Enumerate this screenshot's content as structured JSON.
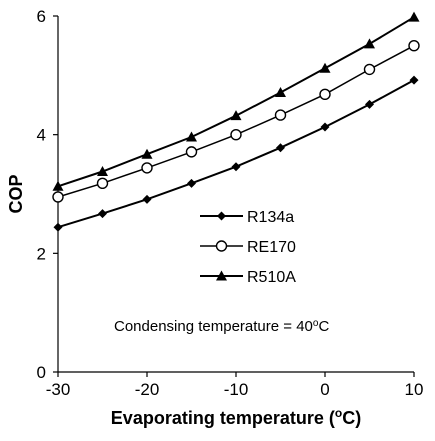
{
  "chart_data": {
    "type": "line",
    "xlabel_main": "Evaporating temperature (",
    "xlabel_sup": "o",
    "xlabel_tail": "C)",
    "ylabel": "COP",
    "xlim": [
      -30,
      10
    ],
    "ylim": [
      0,
      6
    ],
    "x_ticks": [
      "-30",
      "-20",
      "-10",
      "0",
      "10"
    ],
    "y_ticks": [
      "0",
      "2",
      "4",
      "6"
    ],
    "x": [
      -30,
      -25,
      -20,
      -15,
      -10,
      -5,
      0,
      5,
      10
    ],
    "series": [
      {
        "name": "R134a",
        "marker": "diamond",
        "values": [
          2.44,
          2.67,
          2.91,
          3.18,
          3.46,
          3.78,
          4.13,
          4.51,
          4.92
        ]
      },
      {
        "name": "RE170",
        "marker": "open-circle",
        "values": [
          2.95,
          3.18,
          3.44,
          3.71,
          4.0,
          4.33,
          4.68,
          5.1,
          5.5
        ]
      },
      {
        "name": "R510A",
        "marker": "triangle",
        "values": [
          3.13,
          3.38,
          3.67,
          3.96,
          4.32,
          4.71,
          5.12,
          5.53,
          5.98
        ]
      }
    ],
    "legend_position": "center-left",
    "annotation_main": "Condensing temperature  = 40",
    "annotation_sup": "o",
    "annotation_tail": "C",
    "grid": false
  }
}
